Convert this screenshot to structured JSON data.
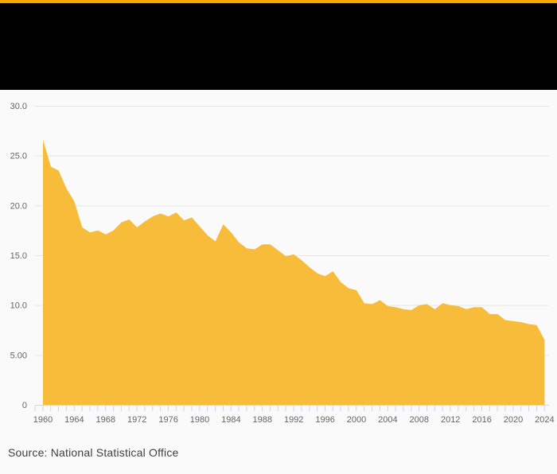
{
  "page": {
    "background": "#fafafa",
    "accent_bar_color": "#f6a800",
    "header_banner_color": "#000000"
  },
  "source": {
    "label": "Source: National Statistical Office"
  },
  "chart_data": {
    "type": "area",
    "title": "",
    "x": [
      1960,
      1961,
      1962,
      1963,
      1964,
      1965,
      1966,
      1967,
      1968,
      1969,
      1970,
      1971,
      1972,
      1973,
      1974,
      1975,
      1976,
      1977,
      1978,
      1979,
      1980,
      1981,
      1982,
      1983,
      1984,
      1985,
      1986,
      1987,
      1988,
      1989,
      1990,
      1991,
      1992,
      1993,
      1994,
      1995,
      1996,
      1997,
      1998,
      1999,
      2000,
      2001,
      2002,
      2003,
      2004,
      2005,
      2006,
      2007,
      2008,
      2009,
      2010,
      2011,
      2012,
      2013,
      2014,
      2015,
      2016,
      2017,
      2018,
      2019,
      2020,
      2021,
      2022,
      2023,
      2024
    ],
    "values": [
      26.6,
      23.9,
      23.5,
      21.7,
      20.4,
      17.8,
      17.3,
      17.5,
      17.1,
      17.5,
      18.3,
      18.6,
      17.8,
      18.4,
      18.9,
      19.2,
      18.9,
      19.3,
      18.5,
      18.8,
      17.9,
      17.0,
      16.4,
      18.1,
      17.3,
      16.3,
      15.7,
      15.6,
      16.1,
      16.1,
      15.5,
      14.9,
      15.1,
      14.5,
      13.8,
      13.2,
      12.9,
      13.4,
      12.3,
      11.7,
      11.5,
      10.2,
      10.1,
      10.5,
      9.9,
      9.8,
      9.6,
      9.5,
      10.0,
      10.1,
      9.6,
      10.2,
      10.0,
      9.9,
      9.6,
      9.8,
      9.8,
      9.1,
      9.1,
      8.5,
      8.4,
      8.3,
      8.1,
      8.0,
      6.5
    ],
    "xlabel": "",
    "ylabel": "",
    "ylim": [
      0,
      30
    ],
    "yticks": [
      {
        "v": 30,
        "label": "30.0"
      },
      {
        "v": 25,
        "label": "25.0"
      },
      {
        "v": 20,
        "label": "20.0"
      },
      {
        "v": 15,
        "label": "15.0"
      },
      {
        "v": 10,
        "label": "10.0"
      },
      {
        "v": 5,
        "label": "5.00"
      },
      {
        "v": 0,
        "label": "0"
      }
    ],
    "xtick_years": [
      1960,
      1964,
      1968,
      1972,
      1976,
      1980,
      1984,
      1988,
      1992,
      1996,
      2000,
      2004,
      2008,
      2012,
      2016,
      2020,
      2024
    ],
    "grid": true,
    "legend": "none",
    "colors": {
      "area_fill": "#f8bc3b",
      "grid_line": "#e6e6e6",
      "axis_line": "#ccd6eb",
      "tick": "#ccd6eb",
      "axis_label": "#666666"
    }
  }
}
